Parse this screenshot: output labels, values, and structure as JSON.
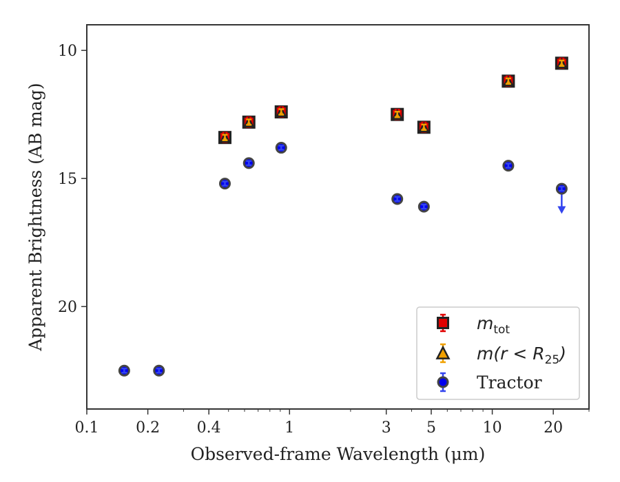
{
  "chart_data": {
    "type": "scatter",
    "xlabel": "Observed-frame Wavelength (μm)",
    "ylabel": "Apparent Brightness (AB mag)",
    "x_scale": "log",
    "xlim": [
      0.1,
      30
    ],
    "ylim": [
      24,
      9
    ],
    "y_inverted": true,
    "grid": false,
    "legend_position": "lower-right",
    "x_ticks": [
      {
        "value": 0.1,
        "label": "0.1"
      },
      {
        "value": 0.2,
        "label": "0.2"
      },
      {
        "value": 0.4,
        "label": "0.4"
      },
      {
        "value": 1,
        "label": "1"
      },
      {
        "value": 3,
        "label": "3"
      },
      {
        "value": 5,
        "label": "5"
      },
      {
        "value": 10,
        "label": "10"
      },
      {
        "value": 20,
        "label": "20"
      }
    ],
    "y_ticks": [
      {
        "value": 10,
        "label": "10"
      },
      {
        "value": 15,
        "label": "15"
      },
      {
        "value": 20,
        "label": "20"
      }
    ],
    "series": [
      {
        "name": "m_tot",
        "legend_label": "m",
        "legend_sub": "tot",
        "marker": "square",
        "color": "#e00000",
        "edge_color": "#222222",
        "errorbar_color": "#e00000",
        "x": [
          0.48,
          0.63,
          0.91,
          3.4,
          4.6,
          12,
          22
        ],
        "y": [
          13.4,
          12.8,
          12.4,
          12.5,
          13.0,
          11.2,
          10.5
        ]
      },
      {
        "name": "m(r < R25)",
        "legend_label": "m(r < R",
        "legend_sub": "25",
        "legend_tail": ")",
        "marker": "triangle",
        "color": "#f0a000",
        "edge_color": "#222222",
        "errorbar_color": "#f0a000",
        "x": [
          0.48,
          0.63,
          0.91,
          3.4,
          4.6,
          12,
          22
        ],
        "y": [
          13.4,
          12.8,
          12.4,
          12.5,
          13.0,
          11.2,
          10.5
        ]
      },
      {
        "name": "Tractor",
        "legend_label": "Tractor",
        "marker": "circle",
        "color": "#0000ee",
        "edge_color": "#444444",
        "errorbar_color": "#3344ee",
        "x": [
          0.153,
          0.227,
          0.48,
          0.63,
          0.91,
          3.4,
          4.6,
          12,
          22
        ],
        "y": [
          22.5,
          22.5,
          15.2,
          14.4,
          13.8,
          15.8,
          16.1,
          14.5,
          15.4
        ],
        "upper_limit_index": 8,
        "upper_limit_to": 16.3
      }
    ]
  }
}
